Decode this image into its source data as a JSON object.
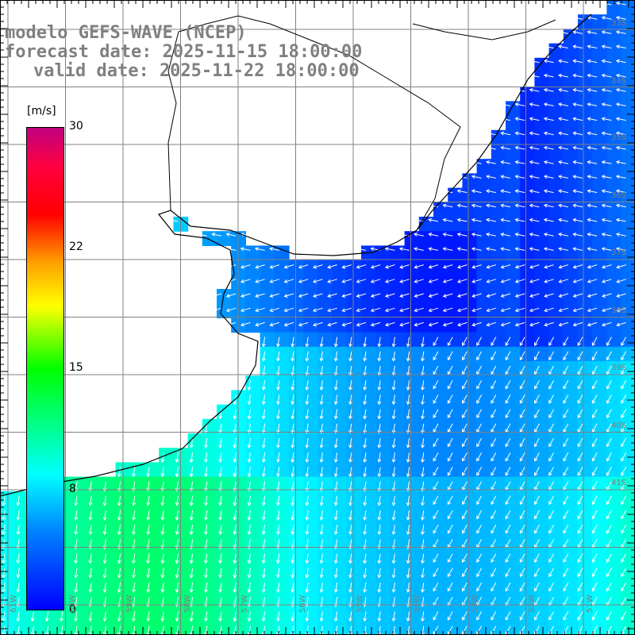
{
  "title": {
    "line1": "modelo GEFS-WAVE (NCEP)",
    "line2": "forecast date: 2025-11-15 18:00:00",
    "line3": "valid date: 2025-11-22 18:00:00"
  },
  "colorbar": {
    "unit": "[m/s]",
    "ticks": [
      {
        "value": 30,
        "label": "30"
      },
      {
        "value": 22,
        "label": "22"
      },
      {
        "value": 15,
        "label": "15"
      },
      {
        "value": 8,
        "label": "8"
      },
      {
        "value": 0,
        "label": "0"
      }
    ],
    "colors": [
      "#0000ff",
      "#0080ff",
      "#00ffff",
      "#00ff00",
      "#ffff00",
      "#ffa000",
      "#ff0000",
      "#c00080"
    ]
  },
  "latitude_labels": [
    "33S",
    "34S",
    "35S",
    "36S",
    "37S",
    "38S",
    "39S",
    "40S",
    "41S"
  ],
  "longitude_labels": [
    "61W",
    "60W",
    "59W",
    "58W",
    "57W",
    "56W",
    "55W",
    "54W",
    "53W",
    "52W",
    "51W"
  ],
  "colors": {
    "grid": "#808080",
    "coast": "#000000",
    "land": "#ffffff",
    "arrow": "#ffffff"
  }
}
